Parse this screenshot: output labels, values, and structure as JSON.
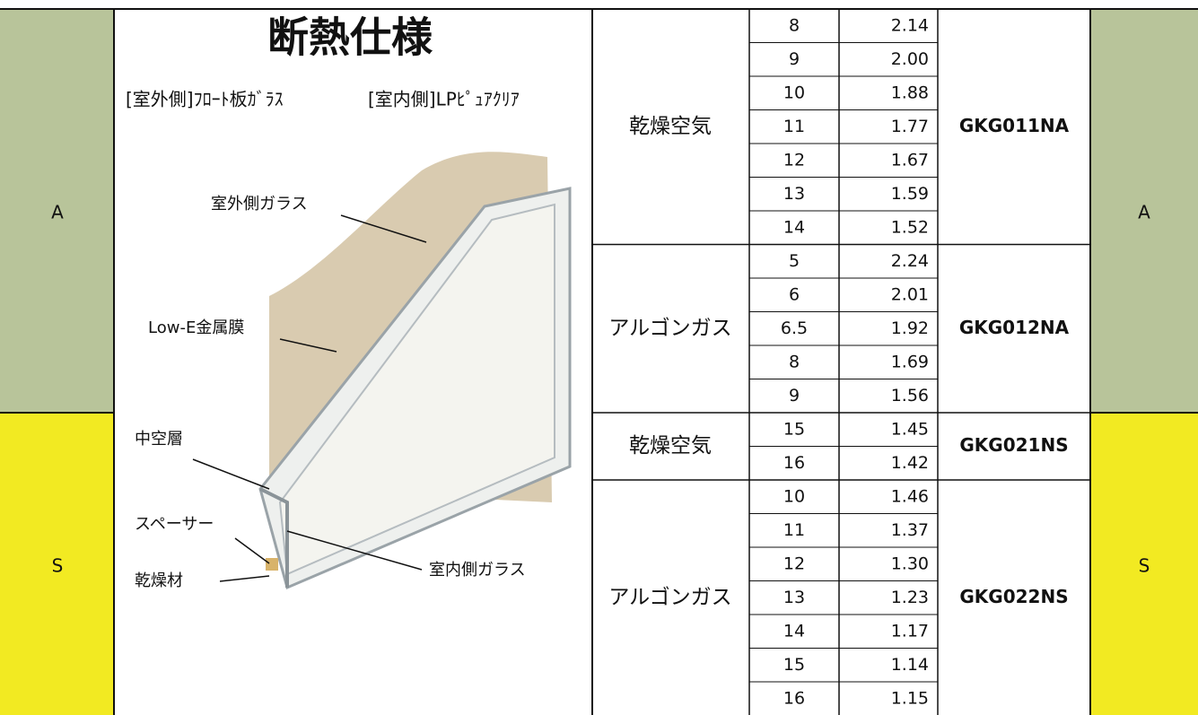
{
  "side_labels": {
    "left": [
      "A",
      "S"
    ],
    "right": [
      "A",
      "S"
    ]
  },
  "title": "断熱仕様",
  "subtitle": [
    "[室外側]ﾌﾛｰﾄ板ｶﾞﾗｽ",
    "[室内側]LPﾋﾟｭｱｸﾘｱ"
  ],
  "diagram_labels": {
    "outer_glass": "室外側ガラス",
    "low_e": "Low-E金属膜",
    "air_layer": "中空層",
    "spacer": "スペーサー",
    "desiccant": "乾燥材",
    "inner_glass": "室内側ガラス"
  },
  "table": {
    "groups": [
      {
        "gas": "乾燥空気",
        "product": "GKG011NA",
        "rows": [
          [
            "8",
            "2.14"
          ],
          [
            "9",
            "2.00"
          ],
          [
            "10",
            "1.88"
          ],
          [
            "11",
            "1.77"
          ],
          [
            "12",
            "1.67"
          ],
          [
            "13",
            "1.59"
          ],
          [
            "14",
            "1.52"
          ]
        ]
      },
      {
        "gas": "アルゴンガス",
        "product": "GKG012NA",
        "rows": [
          [
            "5",
            "2.24"
          ],
          [
            "6",
            "2.01"
          ],
          [
            "6.5",
            "1.92"
          ],
          [
            "8",
            "1.69"
          ],
          [
            "9",
            "1.56"
          ]
        ]
      },
      {
        "gas": "乾燥空気",
        "product": "GKG021NS",
        "rows": [
          [
            "15",
            "1.45"
          ],
          [
            "16",
            "1.42"
          ]
        ]
      },
      {
        "gas": "アルゴンガス",
        "product": "GKG022NS",
        "rows": [
          [
            "10",
            "1.46"
          ],
          [
            "11",
            "1.37"
          ],
          [
            "12",
            "1.30"
          ],
          [
            "13",
            "1.23"
          ],
          [
            "14",
            "1.17"
          ],
          [
            "15",
            "1.14"
          ],
          [
            "16",
            "1.15"
          ]
        ]
      }
    ]
  }
}
